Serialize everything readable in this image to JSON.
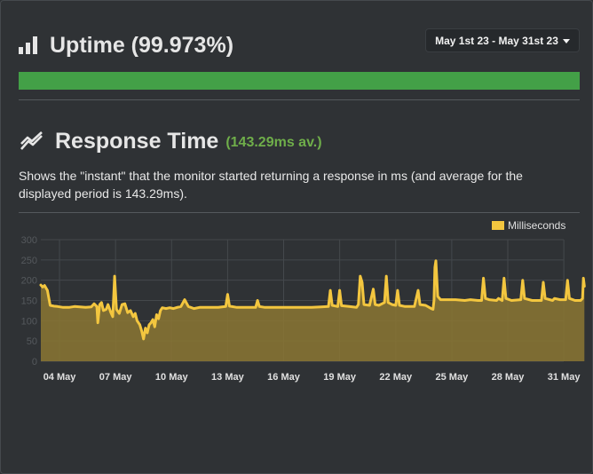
{
  "uptime": {
    "title": "Uptime (99.973%)",
    "percent": 99.973,
    "bar_color": "#43a047",
    "icon": "bar-chart-icon"
  },
  "date_range": {
    "label": "May 1st 23 - May 31st 23"
  },
  "response_time": {
    "title": "Response Time",
    "average_label": "(143.29ms av.)",
    "description": "Shows the \"instant\" that the monitor started returning a response in ms (and average for the displayed period is 143.29ms).",
    "icon": "line-chart-icon"
  },
  "colors": {
    "line": "#f3c63f",
    "fill": "#8b7732",
    "grid": "#44484c"
  },
  "chart_data": {
    "type": "area",
    "legend": [
      "Milliseconds"
    ],
    "legend_position": "top-right",
    "ylim": [
      0,
      300
    ],
    "yticks": [
      "300",
      "250",
      "200",
      "150",
      "100",
      "50",
      "0"
    ],
    "xticks": [
      "04 May",
      "07 May",
      "10 May",
      "13 May",
      "16 May",
      "19 May",
      "22 May",
      "25 May",
      "28 May",
      "31 May"
    ],
    "x_start_day": 3,
    "series": [
      {
        "name": "Milliseconds",
        "points": [
          [
            3.0,
            188
          ],
          [
            3.1,
            183
          ],
          [
            3.2,
            187
          ],
          [
            3.35,
            175
          ],
          [
            3.5,
            138
          ],
          [
            3.7,
            136
          ],
          [
            3.9,
            135
          ],
          [
            4.2,
            133
          ],
          [
            4.5,
            133
          ],
          [
            4.8,
            135
          ],
          [
            5.1,
            134
          ],
          [
            5.4,
            133
          ],
          [
            5.7,
            134
          ],
          [
            5.85,
            142
          ],
          [
            6.0,
            135
          ],
          [
            6.05,
            95
          ],
          [
            6.15,
            140
          ],
          [
            6.25,
            145
          ],
          [
            6.35,
            125
          ],
          [
            6.5,
            128
          ],
          [
            6.6,
            140
          ],
          [
            6.75,
            120
          ],
          [
            6.85,
            110
          ],
          [
            6.95,
            210
          ],
          [
            7.05,
            128
          ],
          [
            7.2,
            118
          ],
          [
            7.35,
            140
          ],
          [
            7.5,
            142
          ],
          [
            7.65,
            120
          ],
          [
            7.8,
            125
          ],
          [
            7.95,
            110
          ],
          [
            8.05,
            118
          ],
          [
            8.15,
            100
          ],
          [
            8.3,
            90
          ],
          [
            8.4,
            75
          ],
          [
            8.5,
            55
          ],
          [
            8.6,
            82
          ],
          [
            8.7,
            70
          ],
          [
            8.8,
            90
          ],
          [
            8.9,
            95
          ],
          [
            9.0,
            103
          ],
          [
            9.1,
            85
          ],
          [
            9.2,
            115
          ],
          [
            9.3,
            105
          ],
          [
            9.4,
            125
          ],
          [
            9.5,
            132
          ],
          [
            9.7,
            130
          ],
          [
            9.9,
            132
          ],
          [
            10.1,
            130
          ],
          [
            10.3,
            133
          ],
          [
            10.5,
            135
          ],
          [
            10.7,
            152
          ],
          [
            10.9,
            135
          ],
          [
            11.2,
            130
          ],
          [
            11.5,
            133
          ],
          [
            12,
            133
          ],
          [
            12.5,
            133
          ],
          [
            12.9,
            135
          ],
          [
            13.0,
            165
          ],
          [
            13.1,
            136
          ],
          [
            13.5,
            133
          ],
          [
            14,
            133
          ],
          [
            14.5,
            133
          ],
          [
            14.6,
            150
          ],
          [
            14.7,
            135
          ],
          [
            15,
            133
          ],
          [
            15.5,
            133
          ],
          [
            16,
            133
          ],
          [
            16.5,
            133
          ],
          [
            17,
            133
          ],
          [
            17.5,
            133
          ],
          [
            18,
            134
          ],
          [
            18.4,
            135
          ],
          [
            18.5,
            175
          ],
          [
            18.6,
            138
          ],
          [
            18.9,
            135
          ],
          [
            19.0,
            175
          ],
          [
            19.1,
            137
          ],
          [
            19.5,
            135
          ],
          [
            19.9,
            133
          ],
          [
            20.0,
            140
          ],
          [
            20.1,
            210
          ],
          [
            20.2,
            195
          ],
          [
            20.3,
            140
          ],
          [
            20.6,
            138
          ],
          [
            20.8,
            178
          ],
          [
            20.9,
            140
          ],
          [
            21.1,
            138
          ],
          [
            21.4,
            145
          ],
          [
            21.5,
            210
          ],
          [
            21.6,
            145
          ],
          [
            21.8,
            140
          ],
          [
            22.0,
            138
          ],
          [
            22.1,
            175
          ],
          [
            22.2,
            138
          ],
          [
            22.5,
            135
          ],
          [
            23.0,
            135
          ],
          [
            23.2,
            175
          ],
          [
            23.3,
            140
          ],
          [
            23.6,
            138
          ],
          [
            23.9,
            130
          ],
          [
            24.0,
            128
          ],
          [
            24.05,
            150
          ],
          [
            24.1,
            232
          ],
          [
            24.15,
            248
          ],
          [
            24.25,
            160
          ],
          [
            24.4,
            152
          ],
          [
            24.8,
            152
          ],
          [
            25.2,
            152
          ],
          [
            25.7,
            150
          ],
          [
            26.0,
            152
          ],
          [
            26.4,
            150
          ],
          [
            26.6,
            150
          ],
          [
            26.7,
            205
          ],
          [
            26.8,
            155
          ],
          [
            27.0,
            152
          ],
          [
            27.4,
            150
          ],
          [
            27.5,
            155
          ],
          [
            27.7,
            150
          ],
          [
            27.8,
            205
          ],
          [
            27.9,
            155
          ],
          [
            28.2,
            150
          ],
          [
            28.7,
            152
          ],
          [
            28.8,
            200
          ],
          [
            28.9,
            155
          ],
          [
            29.3,
            150
          ],
          [
            29.8,
            150
          ],
          [
            29.9,
            195
          ],
          [
            30.0,
            155
          ],
          [
            30.4,
            150
          ],
          [
            30.5,
            155
          ],
          [
            30.8,
            152
          ],
          [
            31.1,
            152
          ],
          [
            31.2,
            200
          ],
          [
            31.3,
            155
          ],
          [
            31.6,
            150
          ],
          [
            31.9,
            150
          ],
          [
            32.0,
            155
          ],
          [
            32.05,
            205
          ],
          [
            32.1,
            185
          ]
        ]
      }
    ]
  }
}
